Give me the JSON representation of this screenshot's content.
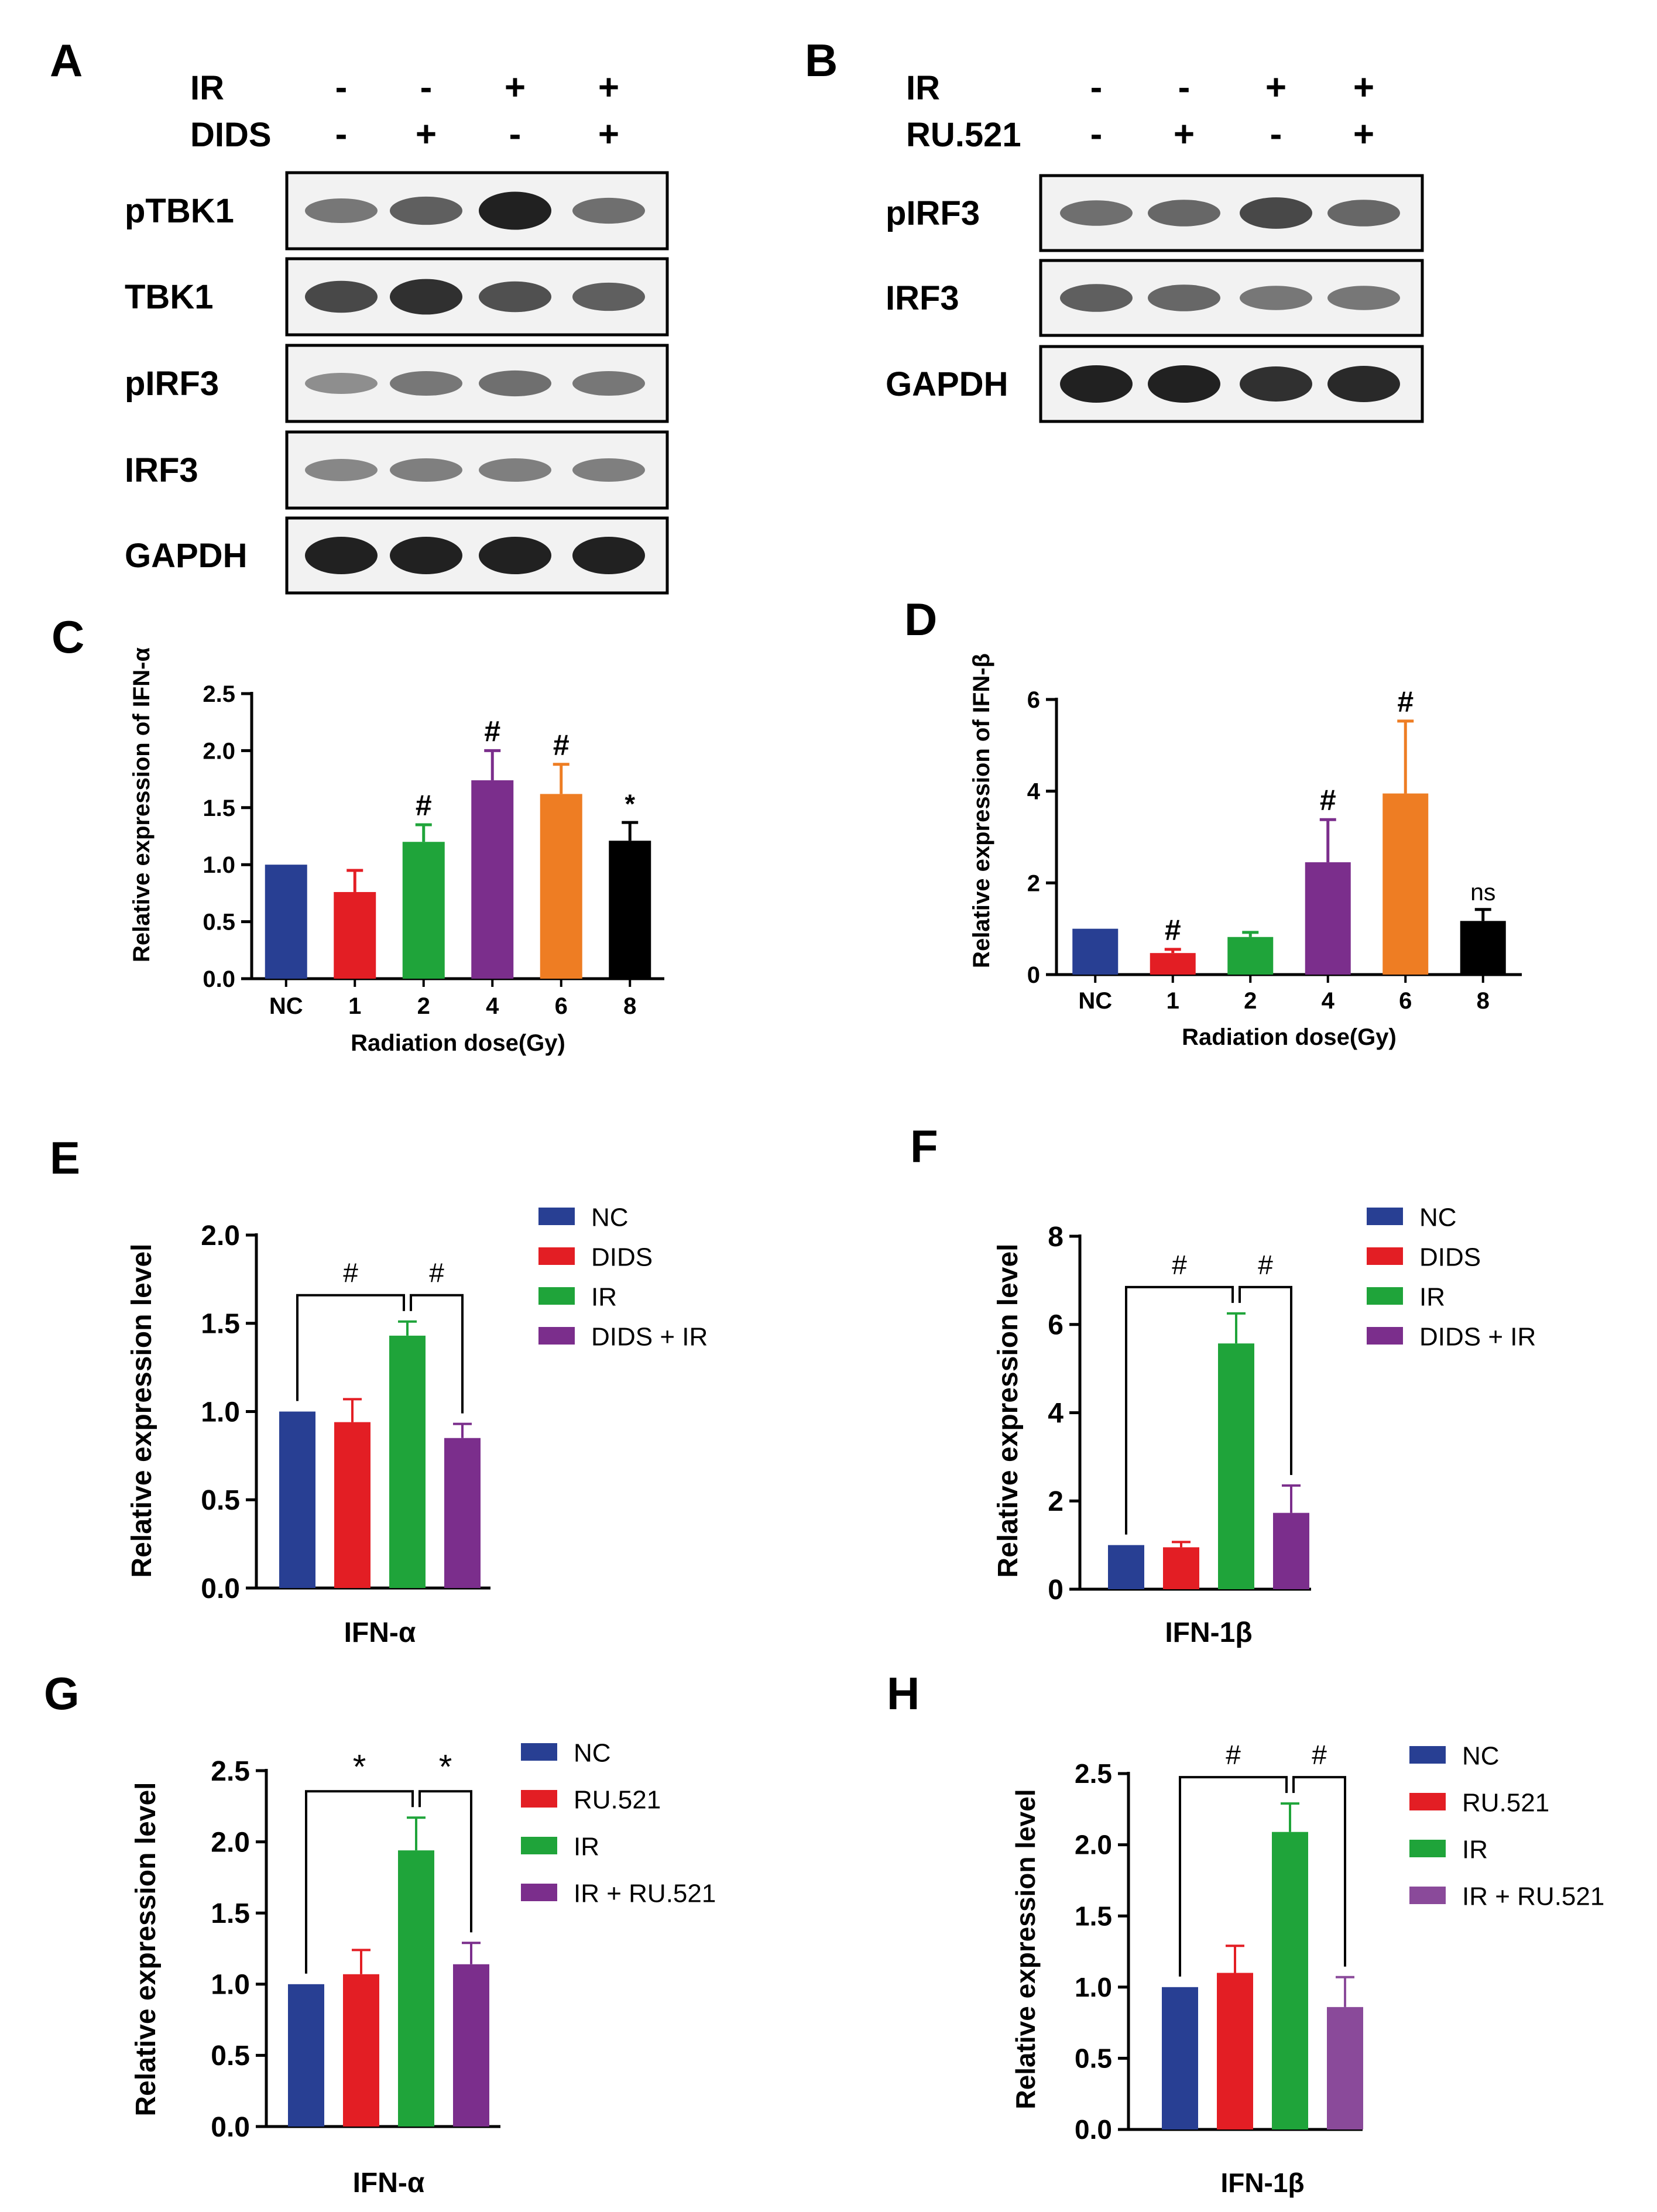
{
  "colors": {
    "blue": "#283f93",
    "red": "#e31e24",
    "green": "#1fa43a",
    "purple": "#7b2e8c",
    "purple_light": "#8a4a9a",
    "orange": "#ee7d23",
    "black": "#000000"
  },
  "panels": {
    "A": {
      "letter": "A",
      "conditions": [
        {
          "label": "IR",
          "signs": [
            "-",
            "-",
            "+",
            "+"
          ]
        },
        {
          "label": "DIDS",
          "signs": [
            "-",
            "+",
            "-",
            "+"
          ]
        }
      ],
      "blots": [
        {
          "label": "pTBK1",
          "intensity": [
            0.45,
            0.6,
            1.0,
            0.5
          ]
        },
        {
          "label": "TBK1",
          "intensity": [
            0.75,
            0.9,
            0.7,
            0.6
          ]
        },
        {
          "label": "pIRF3",
          "intensity": [
            0.3,
            0.45,
            0.5,
            0.45
          ]
        },
        {
          "label": "IRF3",
          "intensity": [
            0.35,
            0.4,
            0.4,
            0.4
          ]
        },
        {
          "label": "GAPDH",
          "intensity": [
            1.0,
            1.0,
            1.0,
            1.0
          ]
        }
      ]
    },
    "B": {
      "letter": "B",
      "conditions": [
        {
          "label": "IR",
          "signs": [
            "-",
            "-",
            "+",
            "+"
          ]
        },
        {
          "label": "RU.521",
          "signs": [
            "-",
            "+",
            "-",
            "+"
          ]
        }
      ],
      "blots": [
        {
          "label": "pIRF3",
          "intensity": [
            0.5,
            0.55,
            0.75,
            0.55
          ]
        },
        {
          "label": "IRF3",
          "intensity": [
            0.6,
            0.55,
            0.45,
            0.45
          ]
        },
        {
          "label": "GAPDH",
          "intensity": [
            1.0,
            1.0,
            0.9,
            0.95
          ]
        }
      ]
    },
    "C": {
      "letter": "C"
    },
    "D": {
      "letter": "D"
    },
    "E": {
      "letter": "E"
    },
    "F": {
      "letter": "F"
    },
    "G": {
      "letter": "G"
    },
    "H": {
      "letter": "H"
    }
  },
  "chart_data": [
    {
      "panel": "C",
      "type": "bar",
      "categories": [
        "NC",
        "1",
        "2",
        "4",
        "6",
        "8"
      ],
      "values": [
        1.0,
        0.76,
        1.2,
        1.74,
        1.62,
        1.21
      ],
      "errors": [
        0,
        0.19,
        0.15,
        0.26,
        0.26,
        0.16
      ],
      "bar_colors": [
        "#283f93",
        "#e31e24",
        "#1fa43a",
        "#7b2e8c",
        "#ee7d23",
        "#000000"
      ],
      "annotations": [
        "",
        "",
        "#",
        "#",
        "#",
        "*"
      ],
      "xlabel": "Radiation dose(Gy)",
      "ylabel": "Relative expression of IFN-α",
      "ylim": [
        0,
        2.5
      ],
      "yticks": [
        "0.0",
        "0.5",
        "1.0",
        "1.5",
        "2.0",
        "2.5"
      ]
    },
    {
      "panel": "D",
      "type": "bar",
      "categories": [
        "NC",
        "1",
        "2",
        "4",
        "6",
        "8"
      ],
      "values": [
        1.0,
        0.47,
        0.82,
        2.45,
        3.95,
        1.17
      ],
      "errors": [
        0,
        0.08,
        0.1,
        0.93,
        1.58,
        0.25
      ],
      "bar_colors": [
        "#283f93",
        "#e31e24",
        "#1fa43a",
        "#7b2e8c",
        "#ee7d23",
        "#000000"
      ],
      "annotations": [
        "",
        "#",
        "",
        "#",
        "#",
        "ns"
      ],
      "xlabel": "Radiation dose(Gy)",
      "ylabel": "Relative expression of IFN-β",
      "ylim": [
        0,
        6
      ],
      "yticks": [
        "0",
        "2",
        "4",
        "6"
      ]
    },
    {
      "panel": "E",
      "type": "bar",
      "xlabel": "IFN-α",
      "ylabel": "Relative expression level",
      "ylim": [
        0,
        2.0
      ],
      "yticks": [
        "0.0",
        "0.5",
        "1.0",
        "1.5",
        "2.0"
      ],
      "series": [
        {
          "name": "NC",
          "value": 1.0,
          "error": 0
        },
        {
          "name": "DIDS",
          "value": 0.94,
          "error": 0.13
        },
        {
          "name": "IR",
          "value": 1.43,
          "error": 0.08
        },
        {
          "name": "DIDS + IR",
          "value": 0.85,
          "error": 0.08
        }
      ],
      "brackets": [
        {
          "from": 0,
          "to": 2,
          "label": "#"
        },
        {
          "from": 2,
          "to": 3,
          "label": "#"
        }
      ]
    },
    {
      "panel": "F",
      "type": "bar",
      "xlabel": "IFN-1β",
      "ylabel": "Relative expression level",
      "ylim": [
        0,
        8
      ],
      "yticks": [
        "0",
        "2",
        "4",
        "6",
        "8"
      ],
      "series": [
        {
          "name": "NC",
          "value": 1.0,
          "error": 0
        },
        {
          "name": "DIDS",
          "value": 0.95,
          "error": 0.12
        },
        {
          "name": "IR",
          "value": 5.57,
          "error": 0.68
        },
        {
          "name": "DIDS + IR",
          "value": 1.73,
          "error": 0.62
        }
      ],
      "brackets": [
        {
          "from": 0,
          "to": 2,
          "label": "#"
        },
        {
          "from": 2,
          "to": 3,
          "label": "#"
        }
      ]
    },
    {
      "panel": "G",
      "type": "bar",
      "xlabel": "IFN-α",
      "ylabel": "Relative expression level",
      "ylim": [
        0,
        2.5
      ],
      "yticks": [
        "0.0",
        "0.5",
        "1.0",
        "1.5",
        "2.0",
        "2.5"
      ],
      "series": [
        {
          "name": "NC",
          "value": 1.0,
          "error": 0
        },
        {
          "name": "RU.521",
          "value": 1.07,
          "error": 0.17
        },
        {
          "name": "IR",
          "value": 1.94,
          "error": 0.23
        },
        {
          "name": "IR + RU.521",
          "value": 1.14,
          "error": 0.15
        }
      ],
      "brackets": [
        {
          "from": 0,
          "to": 2,
          "label": "*"
        },
        {
          "from": 2,
          "to": 3,
          "label": "*"
        }
      ]
    },
    {
      "panel": "H",
      "type": "bar",
      "xlabel": "IFN-1β",
      "ylabel": "Relative expression level",
      "ylim": [
        0,
        2.5
      ],
      "yticks": [
        "0.0",
        "0.5",
        "1.0",
        "1.5",
        "2.0",
        "2.5"
      ],
      "series": [
        {
          "name": "NC",
          "value": 1.0,
          "error": 0
        },
        {
          "name": "RU.521",
          "value": 1.1,
          "error": 0.19
        },
        {
          "name": "IR",
          "value": 2.09,
          "error": 0.2
        },
        {
          "name": "IR + RU.521",
          "value": 0.86,
          "error": 0.21
        }
      ],
      "brackets": [
        {
          "from": 0,
          "to": 2,
          "label": "#"
        },
        {
          "from": 2,
          "to": 3,
          "label": "#"
        }
      ]
    }
  ]
}
